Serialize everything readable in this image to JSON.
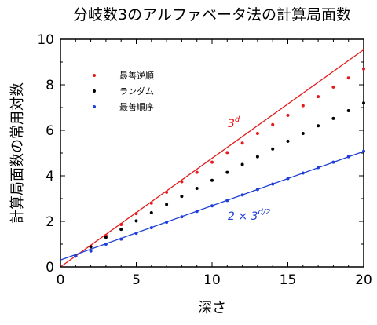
{
  "chart_data": {
    "type": "scatter",
    "title": "分岐数3のアルファベータ法の計算局面数",
    "xlabel": "深さ",
    "ylabel": "計算局面数の常用対数",
    "xlim": [
      0,
      20
    ],
    "ylim": [
      0,
      10
    ],
    "x_ticks": [
      "0",
      "5",
      "10",
      "15",
      "20"
    ],
    "y_ticks": [
      "0",
      "2",
      "4",
      "6",
      "8",
      "10"
    ],
    "grid": false,
    "legend_position": "top-left",
    "x": [
      1,
      2,
      3,
      4,
      5,
      6,
      7,
      8,
      9,
      10,
      11,
      12,
      13,
      14,
      15,
      16,
      17,
      18,
      19,
      20
    ],
    "series": [
      {
        "name": "最善逆順",
        "color": "#e41a1c",
        "values": [
          0.48,
          0.9,
          1.38,
          1.86,
          2.34,
          2.8,
          3.28,
          3.74,
          4.15,
          4.6,
          5.02,
          5.44,
          5.86,
          6.25,
          6.66,
          7.08,
          7.48,
          7.9,
          8.3,
          8.7
        ]
      },
      {
        "name": "ランダム",
        "color": "#000000",
        "values": [
          0.48,
          0.88,
          1.3,
          1.65,
          2.02,
          2.38,
          2.74,
          3.1,
          3.45,
          3.8,
          4.15,
          4.5,
          4.84,
          5.18,
          5.52,
          5.86,
          6.2,
          6.52,
          6.86,
          7.2
        ]
      },
      {
        "name": "最善順序",
        "color": "#1f3fd8",
        "values": [
          0.48,
          0.7,
          1.0,
          1.22,
          1.48,
          1.72,
          1.96,
          2.2,
          2.44,
          2.68,
          2.92,
          3.16,
          3.4,
          3.64,
          3.88,
          4.12,
          4.36,
          4.6,
          4.84,
          5.08
        ]
      }
    ],
    "reference_lines": [
      {
        "label": "3",
        "label_sup": "d",
        "color": "#e41a1c",
        "slope": 0.4771,
        "intercept": 0
      },
      {
        "label": "2 × 3",
        "label_sup": "d/2",
        "color": "#1f3fd8",
        "slope": 0.2386,
        "intercept": 0.301
      }
    ]
  }
}
